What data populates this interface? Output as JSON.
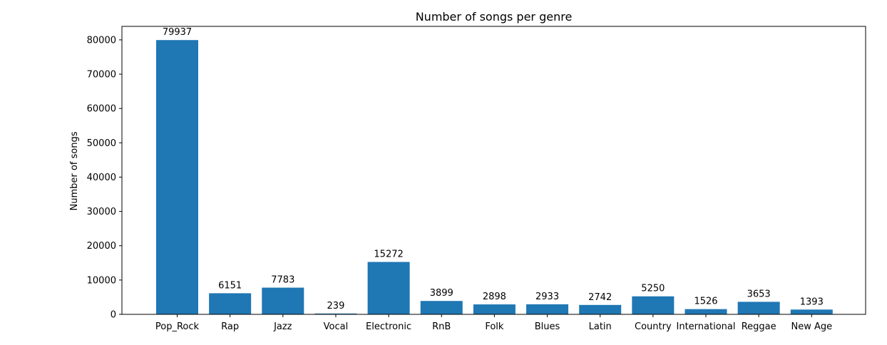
{
  "chart_data": {
    "type": "bar",
    "title": "Number of songs per genre",
    "xlabel": "",
    "ylabel": "Number of songs",
    "categories": [
      "Pop_Rock",
      "Rap",
      "Jazz",
      "Vocal",
      "Electronic",
      "RnB",
      "Folk",
      "Blues",
      "Latin",
      "Country",
      "International",
      "Reggae",
      "New Age"
    ],
    "values": [
      79937,
      6151,
      7783,
      239,
      15272,
      3899,
      2898,
      2933,
      2742,
      5250,
      1526,
      3653,
      1393
    ],
    "ylim": [
      0,
      83930
    ],
    "yticks": [
      0,
      10000,
      20000,
      30000,
      40000,
      50000,
      60000,
      70000,
      80000
    ],
    "bar_color": "#1f77b4",
    "grid": false,
    "legend": "none"
  }
}
